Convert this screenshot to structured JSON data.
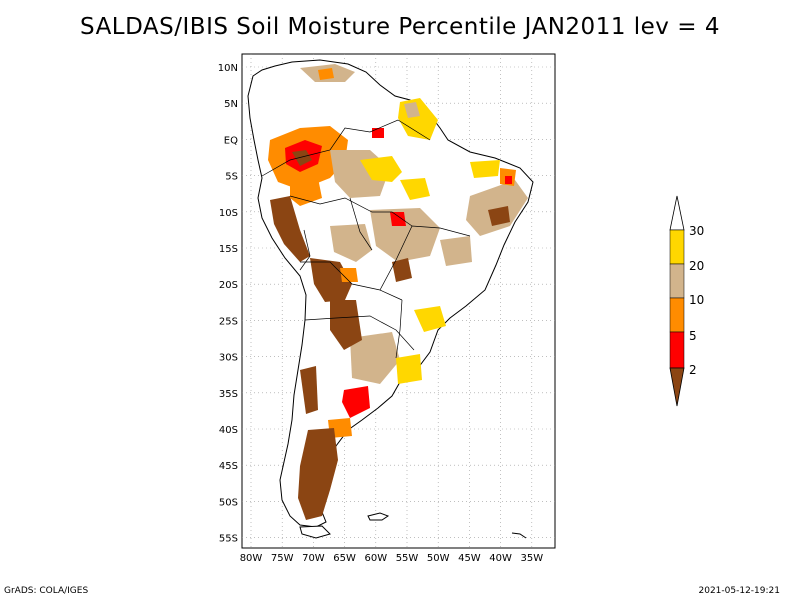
{
  "title": "SALDAS/IBIS Soil Moisture Percentile JAN2011 lev = 4",
  "footer": {
    "credit": "GrADS: COLA/IGES",
    "timestamp": "2021-05-12-19:21"
  },
  "map": {
    "region": "South America",
    "lon_range": [
      -82,
      -32
    ],
    "lat_range": [
      -56,
      12
    ],
    "lon_ticks": [
      "80W",
      "75W",
      "70W",
      "65W",
      "60W",
      "55W",
      "50W",
      "45W",
      "40W",
      "35W"
    ],
    "lat_ticks": [
      "10N",
      "5N",
      "EQ",
      "5S",
      "10S",
      "15S",
      "20S",
      "25S",
      "30S",
      "35S",
      "40S",
      "45S",
      "50S",
      "55S"
    ]
  },
  "colorbar": {
    "levels": [
      "2",
      "5",
      "10",
      "20",
      "30"
    ],
    "colors": {
      "below_2": "#8b4513",
      "2_5": "#ff0000",
      "5_10": "#ff8c00",
      "10_20": "#d2b48c",
      "20_30": "#ffd700",
      "above_30": "#ffffff"
    }
  },
  "colors": {
    "brown": "#8b4513",
    "red": "#ff0000",
    "orange": "#ff8c00",
    "tan": "#d2b48c",
    "gold": "#ffd700"
  }
}
